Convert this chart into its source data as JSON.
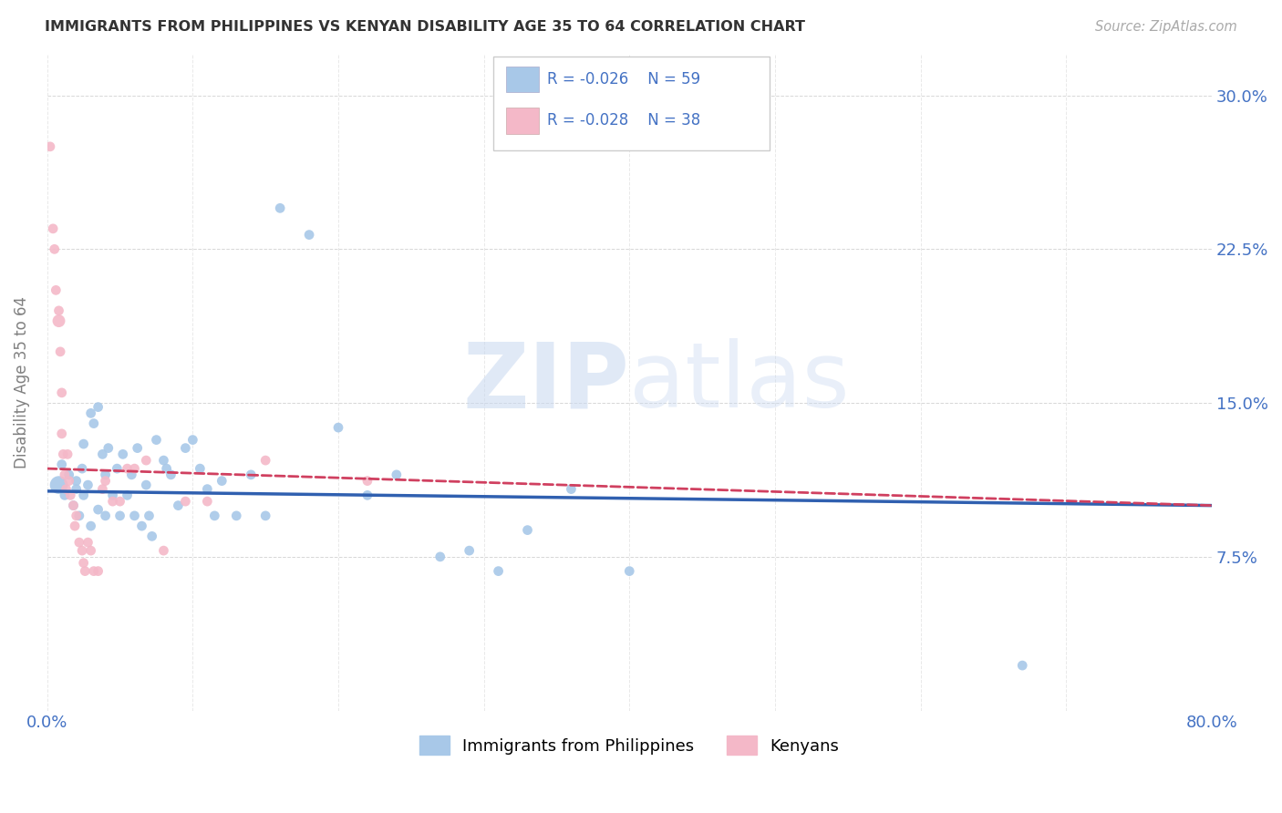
{
  "title": "IMMIGRANTS FROM PHILIPPINES VS KENYAN DISABILITY AGE 35 TO 64 CORRELATION CHART",
  "source": "Source: ZipAtlas.com",
  "ylabel": "Disability Age 35 to 64",
  "x_min": 0.0,
  "x_max": 0.8,
  "y_min": 0.0,
  "y_max": 0.32,
  "x_ticks": [
    0.0,
    0.1,
    0.2,
    0.3,
    0.4,
    0.5,
    0.6,
    0.7,
    0.8
  ],
  "y_ticks": [
    0.0,
    0.075,
    0.15,
    0.225,
    0.3
  ],
  "legend1_r": "R = -0.026",
  "legend1_n": "N = 59",
  "legend2_r": "R = -0.028",
  "legend2_n": "N = 38",
  "blue_color": "#a8c8e8",
  "pink_color": "#f4b8c8",
  "blue_line_color": "#3060b0",
  "pink_line_color": "#d04060",
  "text_color": "#4472c4",
  "watermark_zip": "ZIP",
  "watermark_atlas": "atlas",
  "philippines_x": [
    0.008,
    0.01,
    0.012,
    0.015,
    0.018,
    0.02,
    0.02,
    0.022,
    0.024,
    0.025,
    0.025,
    0.028,
    0.03,
    0.03,
    0.032,
    0.035,
    0.035,
    0.038,
    0.04,
    0.04,
    0.042,
    0.045,
    0.048,
    0.05,
    0.052,
    0.055,
    0.058,
    0.06,
    0.062,
    0.065,
    0.068,
    0.07,
    0.072,
    0.075,
    0.08,
    0.082,
    0.085,
    0.09,
    0.095,
    0.1,
    0.105,
    0.11,
    0.115,
    0.12,
    0.13,
    0.14,
    0.15,
    0.16,
    0.18,
    0.2,
    0.22,
    0.24,
    0.27,
    0.29,
    0.31,
    0.33,
    0.36,
    0.4,
    0.67
  ],
  "philippines_y": [
    0.11,
    0.12,
    0.105,
    0.115,
    0.1,
    0.108,
    0.112,
    0.095,
    0.118,
    0.13,
    0.105,
    0.11,
    0.09,
    0.145,
    0.14,
    0.148,
    0.098,
    0.125,
    0.115,
    0.095,
    0.128,
    0.105,
    0.118,
    0.095,
    0.125,
    0.105,
    0.115,
    0.095,
    0.128,
    0.09,
    0.11,
    0.095,
    0.085,
    0.132,
    0.122,
    0.118,
    0.115,
    0.1,
    0.128,
    0.132,
    0.118,
    0.108,
    0.095,
    0.112,
    0.095,
    0.115,
    0.095,
    0.245,
    0.232,
    0.138,
    0.105,
    0.115,
    0.075,
    0.078,
    0.068,
    0.088,
    0.108,
    0.068,
    0.022
  ],
  "philippines_size": [
    200,
    60,
    60,
    60,
    60,
    60,
    60,
    60,
    60,
    60,
    60,
    60,
    60,
    60,
    60,
    60,
    60,
    60,
    60,
    60,
    60,
    60,
    60,
    60,
    60,
    60,
    60,
    60,
    60,
    60,
    60,
    60,
    60,
    60,
    60,
    60,
    60,
    60,
    60,
    60,
    60,
    60,
    60,
    60,
    60,
    60,
    60,
    60,
    60,
    60,
    60,
    60,
    60,
    60,
    60,
    60,
    60,
    60,
    60
  ],
  "kenya_x": [
    0.002,
    0.004,
    0.005,
    0.006,
    0.008,
    0.008,
    0.009,
    0.01,
    0.01,
    0.011,
    0.012,
    0.013,
    0.014,
    0.015,
    0.016,
    0.018,
    0.019,
    0.02,
    0.022,
    0.024,
    0.025,
    0.026,
    0.028,
    0.03,
    0.032,
    0.035,
    0.038,
    0.04,
    0.045,
    0.05,
    0.055,
    0.06,
    0.068,
    0.08,
    0.095,
    0.11,
    0.15,
    0.22
  ],
  "kenya_y": [
    0.275,
    0.235,
    0.225,
    0.205,
    0.195,
    0.19,
    0.175,
    0.155,
    0.135,
    0.125,
    0.115,
    0.108,
    0.125,
    0.112,
    0.105,
    0.1,
    0.09,
    0.095,
    0.082,
    0.078,
    0.072,
    0.068,
    0.082,
    0.078,
    0.068,
    0.068,
    0.108,
    0.112,
    0.102,
    0.102,
    0.118,
    0.118,
    0.122,
    0.078,
    0.102,
    0.102,
    0.122,
    0.112
  ],
  "kenya_size": [
    60,
    60,
    60,
    60,
    60,
    100,
    60,
    60,
    60,
    60,
    60,
    60,
    60,
    60,
    60,
    60,
    60,
    60,
    60,
    60,
    60,
    60,
    60,
    60,
    60,
    60,
    60,
    60,
    60,
    60,
    60,
    60,
    60,
    60,
    60,
    60,
    60,
    60
  ]
}
